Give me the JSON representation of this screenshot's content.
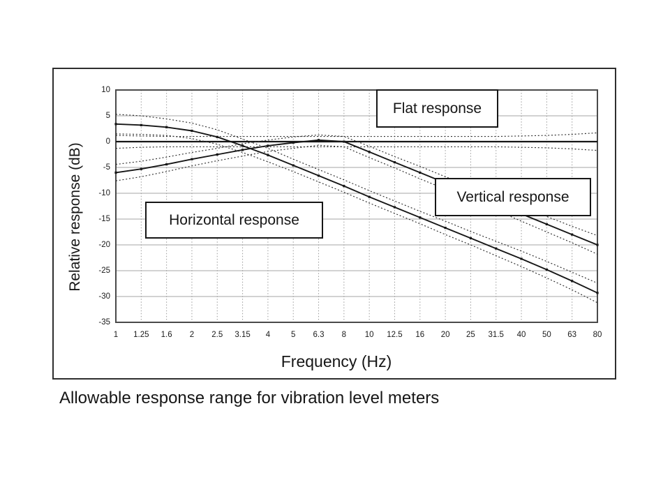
{
  "figure": {
    "caption": "Allowable response range for vibration level meters"
  },
  "chart_data": {
    "type": "line",
    "title": "Allowable response range for vibration level meters",
    "xlabel": "Frequency (Hz)",
    "ylabel": "Relative response (dB)",
    "x_scale": "logarithmic (third-octave steps, equally spaced ticks)",
    "ylim": [
      -35,
      10
    ],
    "grid": {
      "horizontal": "solid gray every 5 dB",
      "vertical": "dotted gray at each third-octave frequency"
    },
    "x_ticks": [
      "1",
      "1.25",
      "1.6",
      "2",
      "2.5",
      "3.15",
      "4",
      "5",
      "6.3",
      "8",
      "10",
      "12.5",
      "16",
      "20",
      "25",
      "31.5",
      "40",
      "50",
      "63",
      "80"
    ],
    "y_ticks": [
      10,
      5,
      0,
      -5,
      -10,
      -15,
      -20,
      -25,
      -30,
      -35
    ],
    "frequencies_hz": [
      1,
      1.25,
      1.6,
      2,
      2.5,
      3.15,
      4,
      5,
      6.3,
      8,
      10,
      12.5,
      16,
      20,
      25,
      31.5,
      40,
      50,
      63,
      80
    ],
    "series": [
      {
        "name": "Flat response",
        "role": "response",
        "line": "solid",
        "markers": false,
        "values": [
          0,
          0,
          0,
          0,
          0,
          0,
          0,
          0,
          0,
          0,
          0,
          0,
          0,
          0,
          0,
          0,
          0,
          0,
          0,
          0
        ]
      },
      {
        "name": "Flat response upper tolerance",
        "role": "tolerance",
        "line": "dotted",
        "markers": false,
        "values": [
          1.2,
          1.1,
          1,
          1,
          1,
          1,
          1,
          1,
          1,
          1,
          1,
          1,
          1,
          1,
          1,
          1,
          1.1,
          1.2,
          1.4,
          1.7
        ]
      },
      {
        "name": "Flat response lower tolerance",
        "role": "tolerance",
        "line": "dotted",
        "markers": false,
        "values": [
          -1.3,
          -1.1,
          -1,
          -1,
          -1,
          -1,
          -1,
          -1,
          -1,
          -1,
          -1,
          -1,
          -1,
          -1,
          -1,
          -1,
          -1.1,
          -1.2,
          -1.4,
          -1.7
        ]
      },
      {
        "name": "Vertical response",
        "role": "response",
        "line": "solid",
        "markers": true,
        "values": [
          -6,
          -5.3,
          -4.4,
          -3.4,
          -2.5,
          -1.6,
          -0.8,
          -0.2,
          0.3,
          0,
          -2,
          -4,
          -6,
          -8,
          -10,
          -12,
          -14,
          -16,
          -18,
          -20
        ]
      },
      {
        "name": "Vertical response upper tolerance",
        "role": "tolerance",
        "line": "dotted",
        "markers": false,
        "values": [
          -4.4,
          -3.8,
          -3,
          -2.1,
          -1.3,
          -0.4,
          0.3,
          0.9,
          1.3,
          1,
          -0.9,
          -2.9,
          -4.8,
          -6.8,
          -8.7,
          -10.7,
          -12.6,
          -14.5,
          -16.4,
          -18.2
        ]
      },
      {
        "name": "Vertical response lower tolerance",
        "role": "tolerance",
        "line": "dotted",
        "markers": false,
        "values": [
          -7.6,
          -6.8,
          -5.8,
          -4.7,
          -3.7,
          -2.8,
          -1.9,
          -1.3,
          -0.7,
          -1,
          -3.1,
          -5.1,
          -7.2,
          -9.2,
          -11.3,
          -13.3,
          -15.4,
          -17.5,
          -19.6,
          -21.8
        ]
      },
      {
        "name": "Horizontal response",
        "role": "response",
        "line": "solid",
        "markers": true,
        "values": [
          3.4,
          3.2,
          2.8,
          2.1,
          0.9,
          -0.8,
          -2.6,
          -4.6,
          -6.6,
          -8.6,
          -10.7,
          -12.7,
          -14.7,
          -16.7,
          -18.7,
          -20.7,
          -22.7,
          -24.8,
          -27,
          -29.3
        ]
      },
      {
        "name": "Horizontal response upper tolerance",
        "role": "tolerance",
        "line": "dotted",
        "markers": false,
        "values": [
          5.3,
          5,
          4.4,
          3.6,
          2.3,
          0.5,
          -1.3,
          -3.4,
          -5.4,
          -7.4,
          -9.5,
          -11.5,
          -13.5,
          -15.4,
          -17.4,
          -19.3,
          -21.2,
          -23.2,
          -25.3,
          -27.4
        ]
      },
      {
        "name": "Horizontal response lower tolerance",
        "role": "tolerance",
        "line": "dotted",
        "markers": false,
        "values": [
          1.5,
          1.4,
          1.2,
          0.6,
          -0.5,
          -2.1,
          -3.9,
          -5.8,
          -7.8,
          -9.8,
          -11.9,
          -13.9,
          -15.9,
          -18,
          -20,
          -22.1,
          -24.2,
          -26.4,
          -28.7,
          -31.2
        ]
      }
    ],
    "annotations": [
      {
        "label": "Flat response"
      },
      {
        "label": "Vertical response"
      },
      {
        "label": "Horizontal response"
      }
    ],
    "colors": {
      "curve": "#161616",
      "tolerance": "#2e2e2e",
      "grid_horizontal": "#b8b8b8",
      "grid_vertical": "#9a9a9a",
      "plot_border": "#4a4a4a",
      "background": "#ffffff",
      "text": "#1a1a1a"
    },
    "legend_position": "labels in boxed annotations inside plot"
  }
}
